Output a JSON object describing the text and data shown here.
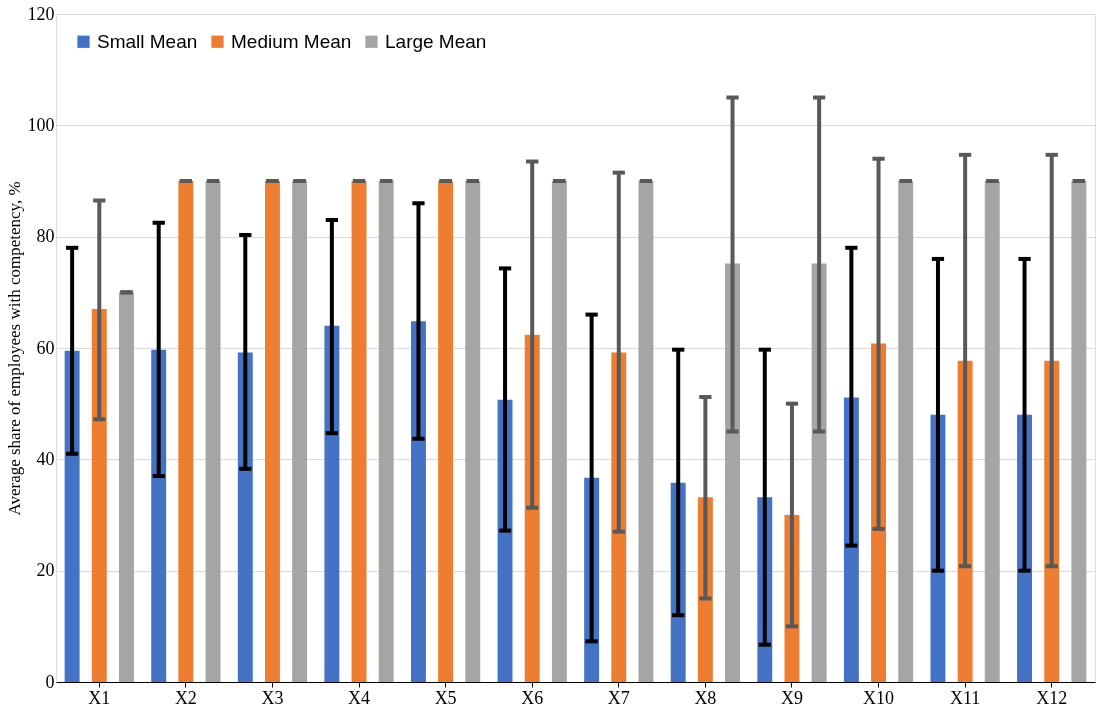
{
  "chart_data": {
    "type": "bar",
    "ylabel": "Average share of employees with competency, %",
    "categories": [
      "X1",
      "X2",
      "X3",
      "X4",
      "X5",
      "X6",
      "X7",
      "X8",
      "X9",
      "X10",
      "X11",
      "X12"
    ],
    "series": [
      {
        "name": "Small Mean",
        "color": "#4472c4",
        "values": [
          59.5,
          59.7,
          59.2,
          64,
          64.8,
          50.7,
          36.7,
          35.8,
          33.2,
          51.1,
          48,
          48
        ],
        "errors": [
          [
            41,
            78
          ],
          [
            37,
            82.5
          ],
          [
            38.3,
            80.3
          ],
          [
            44.7,
            83
          ],
          [
            43.7,
            86
          ],
          [
            27.2,
            74.3
          ],
          [
            7.3,
            66
          ],
          [
            12,
            59.7
          ],
          [
            6.7,
            59.7
          ],
          [
            24.5,
            78
          ],
          [
            20,
            76
          ],
          [
            20,
            76
          ]
        ]
      },
      {
        "name": "Medium Mean",
        "color": "#ed7d31",
        "values": [
          67,
          90,
          90,
          90,
          90,
          62.4,
          59.2,
          33.2,
          30,
          60.8,
          57.7,
          57.7
        ],
        "errors": [
          [
            47.2,
            86.5
          ],
          0,
          0,
          0,
          0,
          [
            31.3,
            93.5
          ],
          [
            27,
            91.5
          ],
          [
            15,
            51.2
          ],
          [
            10,
            50
          ],
          [
            27.5,
            94
          ],
          [
            20.8,
            94.7
          ],
          [
            20.8,
            94.7
          ]
        ]
      },
      {
        "name": "Large Mean",
        "color": "#a5a5a5",
        "values": [
          70,
          90,
          90,
          90,
          90,
          90,
          90,
          75.2,
          75.2,
          90,
          90,
          90
        ],
        "errors": [
          0,
          0,
          0,
          0,
          0,
          0,
          0,
          [
            45,
            105
          ],
          [
            45,
            105
          ],
          0,
          0,
          0
        ]
      }
    ],
    "ylim": [
      0,
      120
    ],
    "yticks": [
      0,
      20,
      40,
      60,
      80,
      100,
      120
    ],
    "grid": "y",
    "legend": "top left"
  }
}
